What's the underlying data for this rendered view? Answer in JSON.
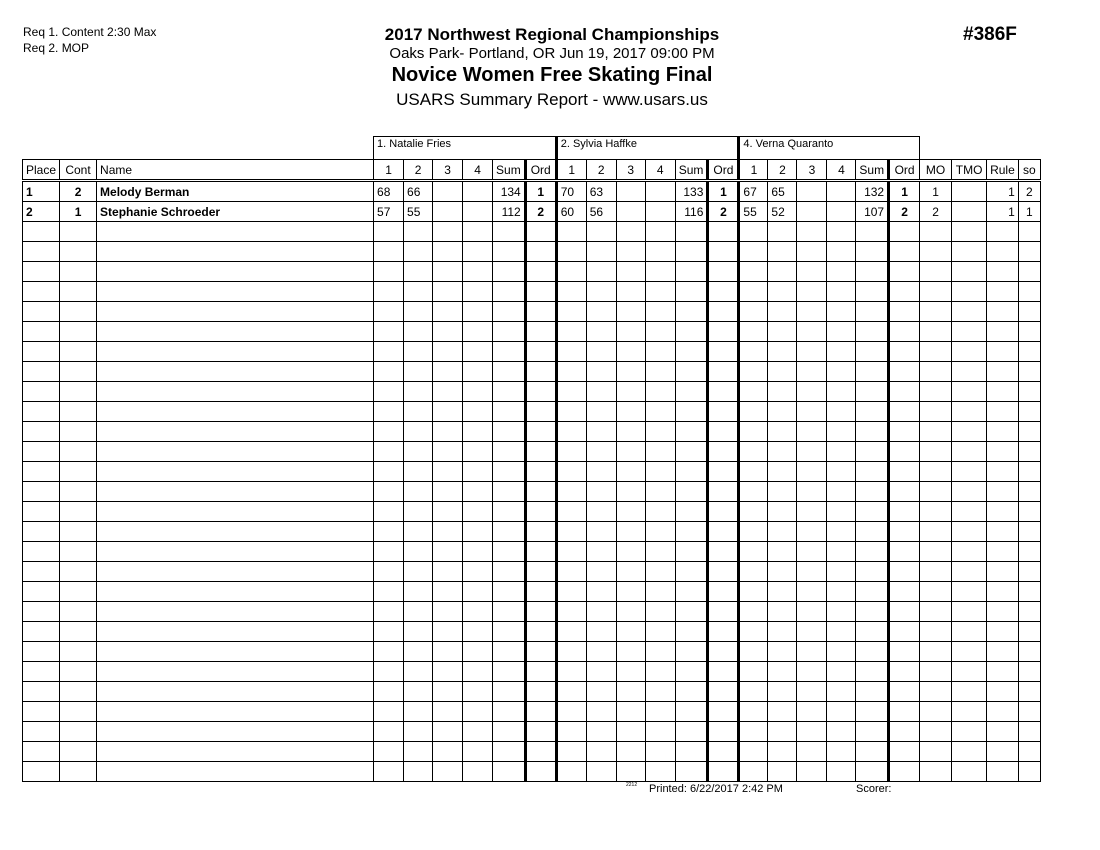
{
  "requirements": [
    "Req  1.  Content 2:30 Max",
    "Req  2.  MOP"
  ],
  "header": {
    "competition": "2017 Northwest Regional Championships",
    "venue": "Oaks Park- Portland, OR  Jun 19, 2017  09:00 PM",
    "event": "Novice Women Free Skating Final",
    "report": "USARS Summary Report - www.usars.us",
    "event_number": "#386F"
  },
  "judges": [
    "1.  Natalie Fries",
    "2.  Sylvia Haffke",
    "4.  Verna Quaranto"
  ],
  "columns": {
    "place": "Place",
    "cont": "Cont",
    "name": "Name",
    "scores": [
      "1",
      "2",
      "3",
      "4",
      "Sum",
      "Ord"
    ],
    "mo": "MO",
    "tmo": "TMO",
    "rule": "Rule",
    "so": "so"
  },
  "rows": [
    {
      "place": "1",
      "cont": "2",
      "name": "Melody Berman",
      "j": [
        [
          "68",
          "66",
          "",
          "",
          "134",
          "1"
        ],
        [
          "70",
          "63",
          "",
          "",
          "133",
          "1"
        ],
        [
          "67",
          "65",
          "",
          "",
          "132",
          "1"
        ]
      ],
      "mo": "1",
      "tmo": "",
      "rule": "1",
      "so": "2"
    },
    {
      "place": "2",
      "cont": "1",
      "name": "Stephanie Schroeder",
      "j": [
        [
          "57",
          "55",
          "",
          "",
          "112",
          "2"
        ],
        [
          "60",
          "56",
          "",
          "",
          "116",
          "2"
        ],
        [
          "55",
          "52",
          "",
          "",
          "107",
          "2"
        ]
      ],
      "mo": "2",
      "tmo": "",
      "rule": "1",
      "so": "1"
    }
  ],
  "footer": {
    "code": "2212",
    "printed": "Printed:  6/22/2017  2:42 PM",
    "scorer": "Scorer:"
  }
}
